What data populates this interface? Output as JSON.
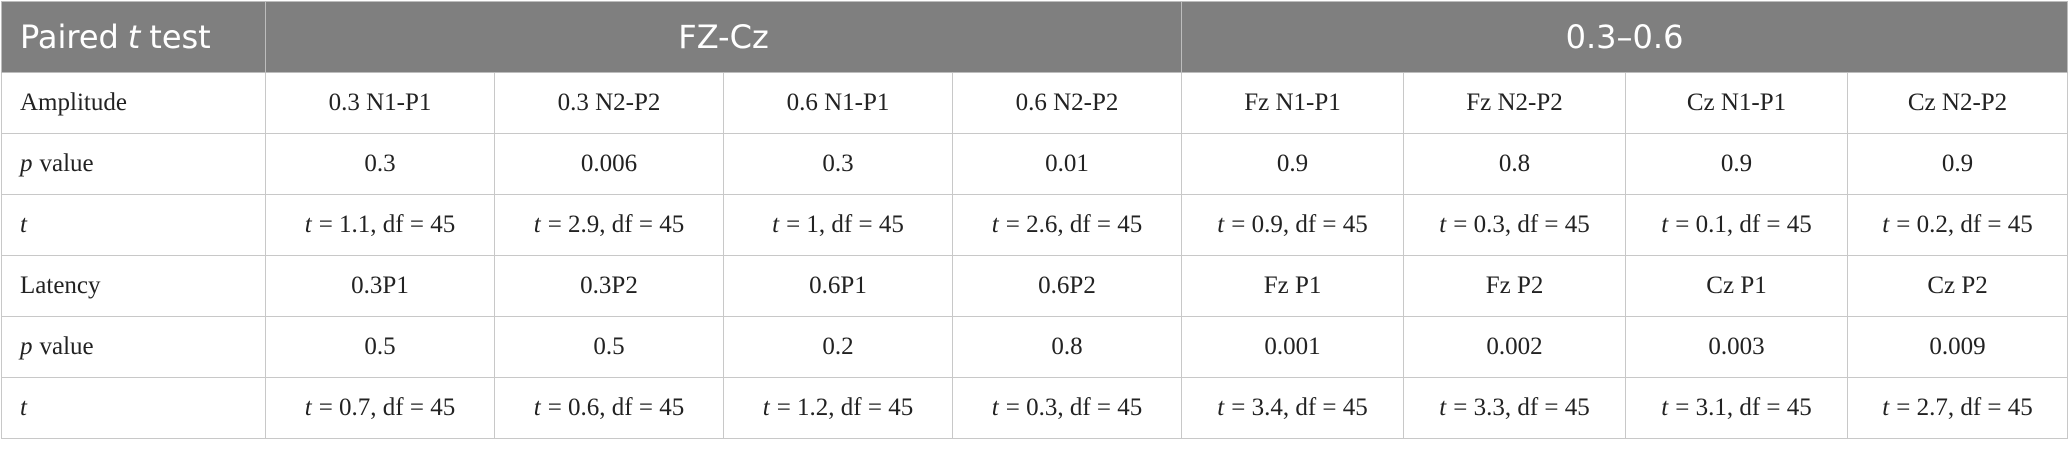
{
  "table": {
    "header": {
      "label": [
        "Paired",
        {
          "italic": "t"
        },
        "test"
      ],
      "groups": [
        "FZ-Cz",
        "0.3–0.6"
      ]
    },
    "rows": [
      [
        "Amplitude",
        "0.3 N1-P1",
        "0.3 N2-P2",
        "0.6 N1-P1",
        "0.6 N2-P2",
        "Fz N1-P1",
        "Fz N2-P2",
        "Cz N1-P1",
        "Cz N2-P2"
      ],
      [
        [
          {
            "italic": "p"
          },
          "value"
        ],
        "0.3",
        "0.006",
        "0.3",
        "0.01",
        "0.9",
        "0.8",
        "0.9",
        "0.9"
      ],
      [
        [
          {
            "italic": "t"
          }
        ],
        [
          {
            "italic": "t"
          },
          "= 1.1, df = 45"
        ],
        [
          {
            "italic": "t"
          },
          "= 2.9, df = 45"
        ],
        [
          {
            "italic": "t"
          },
          "= 1, df = 45"
        ],
        [
          {
            "italic": "t"
          },
          "= 2.6, df = 45"
        ],
        [
          {
            "italic": "t"
          },
          "= 0.9, df = 45"
        ],
        [
          {
            "italic": "t"
          },
          "= 0.3, df = 45"
        ],
        [
          {
            "italic": "t"
          },
          "= 0.1, df = 45"
        ],
        [
          {
            "italic": "t"
          },
          "= 0.2, df = 45"
        ]
      ],
      [
        "Latency",
        "0.3P1",
        "0.3P2",
        "0.6P1",
        "0.6P2",
        "Fz P1",
        "Fz P2",
        "Cz P1",
        "Cz P2"
      ],
      [
        [
          {
            "italic": "p"
          },
          "value"
        ],
        "0.5",
        "0.5",
        "0.2",
        "0.8",
        "0.001",
        "0.002",
        "0.003",
        "0.009"
      ],
      [
        [
          {
            "italic": "t"
          }
        ],
        [
          {
            "italic": "t"
          },
          "= 0.7, df = 45"
        ],
        [
          {
            "italic": "t"
          },
          "= 0.6, df = 45"
        ],
        [
          {
            "italic": "t"
          },
          "= 1.2, df = 45"
        ],
        [
          {
            "italic": "t"
          },
          "= 0.3, df = 45"
        ],
        [
          {
            "italic": "t"
          },
          "= 3.4, df = 45"
        ],
        [
          {
            "italic": "t"
          },
          "= 3.3, df = 45"
        ],
        [
          {
            "italic": "t"
          },
          "= 3.1, df = 45"
        ],
        [
          {
            "italic": "t"
          },
          "= 2.7, df = 45"
        ]
      ]
    ]
  }
}
